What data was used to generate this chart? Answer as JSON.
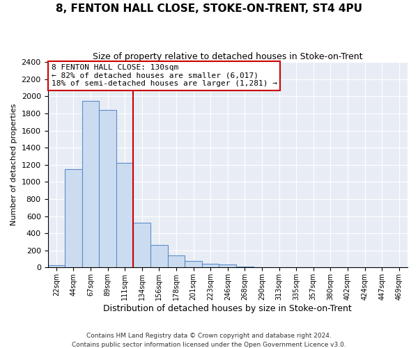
{
  "title": "8, FENTON HALL CLOSE, STOKE-ON-TRENT, ST4 4PU",
  "subtitle": "Size of property relative to detached houses in Stoke-on-Trent",
  "xlabel": "Distribution of detached houses by size in Stoke-on-Trent",
  "ylabel": "Number of detached properties",
  "bar_labels": [
    "22sqm",
    "44sqm",
    "67sqm",
    "89sqm",
    "111sqm",
    "134sqm",
    "156sqm",
    "178sqm",
    "201sqm",
    "223sqm",
    "246sqm",
    "268sqm",
    "290sqm",
    "313sqm",
    "335sqm",
    "357sqm",
    "380sqm",
    "402sqm",
    "424sqm",
    "447sqm",
    "469sqm"
  ],
  "bar_values": [
    30,
    1150,
    1950,
    1840,
    1220,
    520,
    265,
    145,
    75,
    45,
    35,
    10,
    5,
    3,
    1,
    1,
    0,
    0,
    0,
    0,
    0
  ],
  "bar_color": "#ccdcf0",
  "bar_edge_color": "#5b8dc8",
  "vline_color": "#cc0000",
  "annotation_title": "8 FENTON HALL CLOSE: 130sqm",
  "annotation_line2": "← 82% of detached houses are smaller (6,017)",
  "annotation_line3": "18% of semi-detached houses are larger (1,281) →",
  "annotation_box_edgecolor": "#cc0000",
  "ylim": [
    0,
    2400
  ],
  "yticks": [
    0,
    200,
    400,
    600,
    800,
    1000,
    1200,
    1400,
    1600,
    1800,
    2000,
    2200,
    2400
  ],
  "footnote1": "Contains HM Land Registry data © Crown copyright and database right 2024.",
  "footnote2": "Contains public sector information licensed under the Open Government Licence v3.0.",
  "fig_bg_color": "#ffffff",
  "plot_bg_color": "#e8edf5"
}
